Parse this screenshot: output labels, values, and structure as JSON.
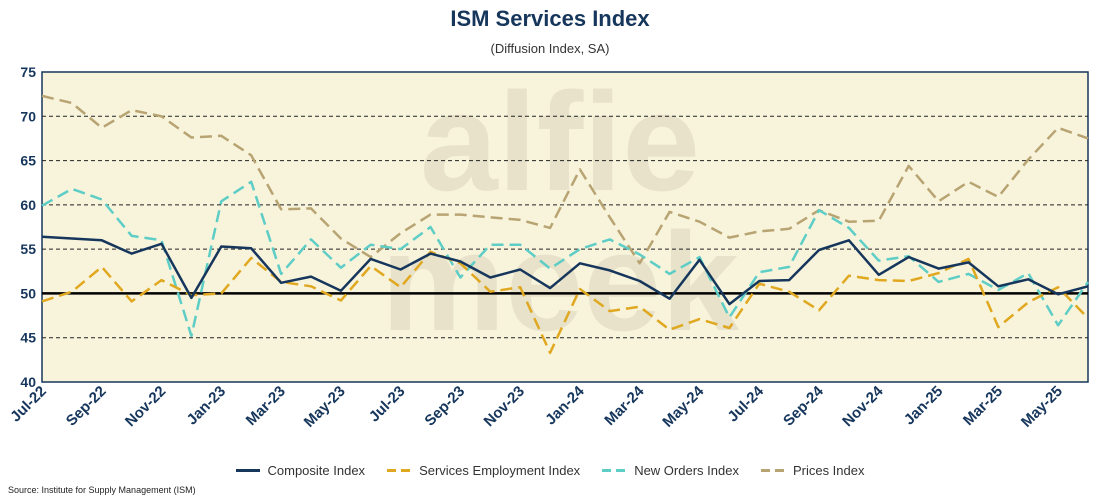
{
  "chart_data": {
    "type": "line",
    "title": "ISM Services Index",
    "subtitle": "(Diffusion Index, SA)",
    "source": "Source: Institute for Supply Management (ISM)",
    "watermark": [
      "alfie",
      "meek"
    ],
    "ylim": [
      40,
      75
    ],
    "yticks": [
      40,
      45,
      50,
      55,
      60,
      65,
      70,
      75
    ],
    "reference_line": 50,
    "grid": "horizontal dashed",
    "x": [
      "Jul-22",
      "Aug-22",
      "Sep-22",
      "Oct-22",
      "Nov-22",
      "Dec-22",
      "Jan-23",
      "Feb-23",
      "Mar-23",
      "Apr-23",
      "May-23",
      "Jun-23",
      "Jul-23",
      "Aug-23",
      "Sep-23",
      "Oct-23",
      "Nov-23",
      "Dec-23",
      "Jan-24",
      "Feb-24",
      "Mar-24",
      "Apr-24",
      "May-24",
      "Jun-24",
      "Jul-24",
      "Aug-24",
      "Sep-24",
      "Oct-24",
      "Nov-24",
      "Dec-24",
      "Jan-25",
      "Feb-25",
      "Mar-25",
      "Apr-25",
      "May-25",
      "Jun-25"
    ],
    "xtick_labels": [
      "Jul-22",
      "Sep-22",
      "Nov-22",
      "Jan-23",
      "Mar-23",
      "May-23",
      "Jul-23",
      "Sep-23",
      "Nov-23",
      "Jan-24",
      "Mar-24",
      "May-24",
      "Jul-24",
      "Sep-24",
      "Nov-24",
      "Jan-25",
      "Mar-25",
      "May-25"
    ],
    "series": [
      {
        "name": "Composite Index",
        "color": "#16365c",
        "dash": "solid",
        "values": [
          56.4,
          56.2,
          56.0,
          54.5,
          55.6,
          49.5,
          55.3,
          55.1,
          51.2,
          51.9,
          50.3,
          53.9,
          52.7,
          54.5,
          53.6,
          51.8,
          52.7,
          50.6,
          53.4,
          52.6,
          51.4,
          49.4,
          53.8,
          48.8,
          51.4,
          51.5,
          54.9,
          56.0,
          52.1,
          54.1,
          52.8,
          53.5,
          50.8,
          51.6,
          49.9,
          50.8
        ]
      },
      {
        "name": "Services Employment Index",
        "color": "#e0a820",
        "dash": "dashed",
        "values": [
          49.1,
          50.2,
          53.0,
          49.1,
          51.5,
          49.8,
          50.0,
          54.0,
          51.3,
          50.8,
          49.2,
          53.1,
          50.7,
          54.7,
          53.4,
          50.2,
          50.7,
          43.3,
          50.5,
          48.0,
          48.5,
          45.9,
          47.1,
          46.1,
          51.1,
          50.2,
          48.1,
          52.0,
          51.5,
          51.4,
          52.3,
          53.9,
          46.2,
          49.0,
          50.7,
          47.2
        ]
      },
      {
        "name": "New Orders Index",
        "color": "#5ecdc6",
        "dash": "dashed",
        "values": [
          59.9,
          61.8,
          60.6,
          56.5,
          56.0,
          45.2,
          60.4,
          62.6,
          52.2,
          56.1,
          52.9,
          55.5,
          55.0,
          57.5,
          51.8,
          55.5,
          55.5,
          52.8,
          55.0,
          56.1,
          54.4,
          52.2,
          54.1,
          47.3,
          52.4,
          53.0,
          59.4,
          57.4,
          53.7,
          54.2,
          51.3,
          52.2,
          50.4,
          52.3,
          46.4,
          51.3
        ]
      },
      {
        "name": "Prices Index",
        "color": "#b8a472",
        "dash": "dashed",
        "values": [
          72.3,
          71.5,
          68.7,
          70.7,
          70.0,
          67.6,
          67.8,
          65.6,
          59.5,
          59.6,
          56.2,
          54.1,
          56.8,
          58.9,
          58.9,
          58.6,
          58.3,
          57.4,
          64.0,
          58.6,
          53.4,
          59.2,
          58.1,
          56.3,
          57.0,
          57.3,
          59.4,
          58.1,
          58.2,
          64.4,
          60.4,
          62.6,
          60.9,
          65.1,
          68.7,
          67.5
        ]
      }
    ]
  }
}
